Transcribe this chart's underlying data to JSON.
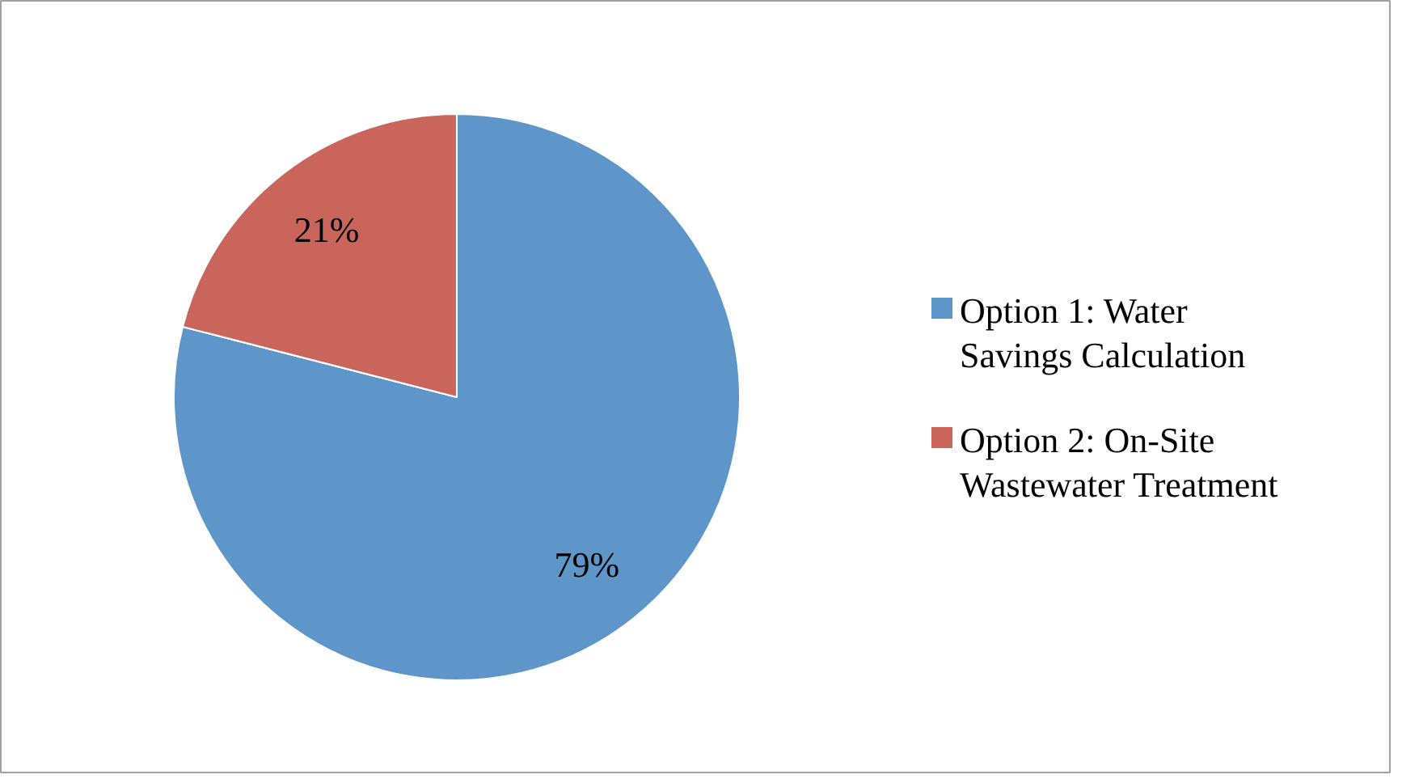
{
  "chart_data": {
    "type": "pie",
    "categories": [
      "Option 1: Water Savings Calculation",
      "Option 2: On-Site Wastewater Treatment"
    ],
    "values": [
      79,
      21
    ],
    "colors": [
      "#5f96c9",
      "#c9655a"
    ],
    "value_labels": [
      "79%",
      "21%"
    ],
    "legend": "right"
  }
}
